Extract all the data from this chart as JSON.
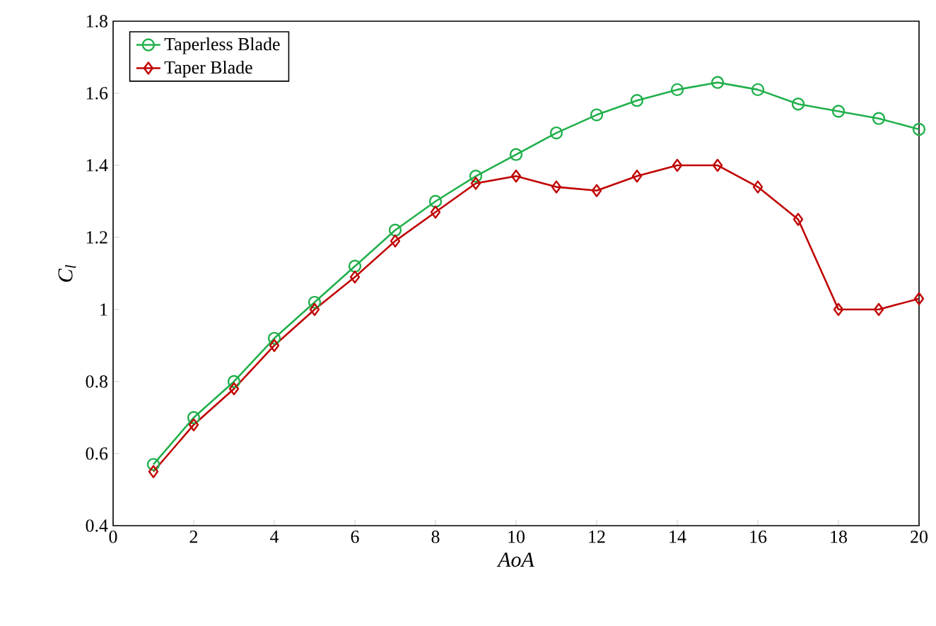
{
  "chart_data": {
    "type": "line",
    "xlabel": "AoA",
    "ylabel": "C$_{l}$",
    "x": [
      1,
      2,
      3,
      4,
      5,
      6,
      7,
      8,
      9,
      10,
      11,
      12,
      13,
      14,
      15,
      16,
      17,
      18,
      19,
      20
    ],
    "series": [
      {
        "name": "Taperless Blade",
        "color": "#22b04c",
        "marker": "circle",
        "values": [
          0.57,
          0.7,
          0.8,
          0.92,
          1.02,
          1.12,
          1.22,
          1.3,
          1.37,
          1.43,
          1.49,
          1.54,
          1.58,
          1.61,
          1.63,
          1.61,
          1.57,
          1.55,
          1.53,
          1.5
        ]
      },
      {
        "name": "Taper Blade",
        "color": "#c00000",
        "marker": "diamond",
        "values": [
          0.55,
          0.68,
          0.78,
          0.9,
          1.0,
          1.09,
          1.19,
          1.27,
          1.35,
          1.37,
          1.34,
          1.33,
          1.37,
          1.4,
          1.4,
          1.34,
          1.25,
          1.0,
          1.0,
          1.03
        ]
      }
    ],
    "xlim": [
      0,
      20
    ],
    "xticks": [
      0,
      2,
      4,
      6,
      8,
      10,
      12,
      14,
      16,
      18,
      20
    ],
    "ylim": [
      0.4,
      1.8
    ],
    "yticks": [
      0.4,
      0.6,
      0.8,
      1,
      1.2,
      1.4,
      1.6,
      1.8
    ],
    "grid": false,
    "legend": "top left",
    "line_style": "solid"
  }
}
